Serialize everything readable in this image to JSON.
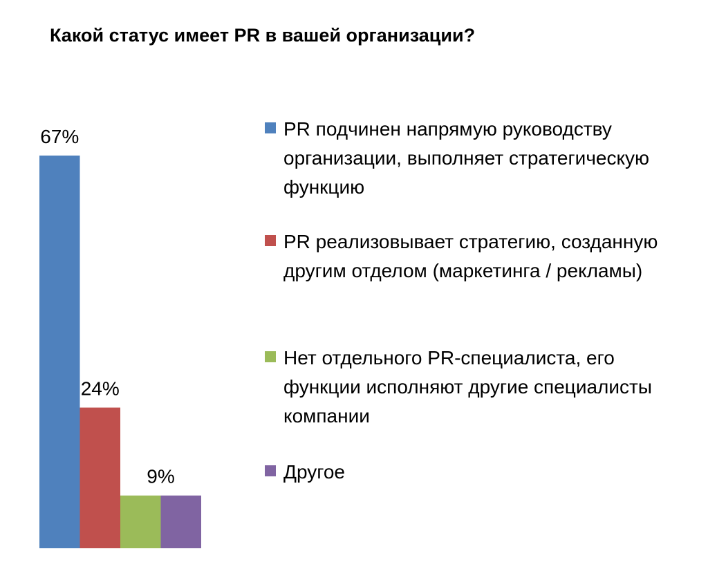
{
  "chart_data": {
    "type": "bar",
    "title": "Какой статус имеет PR в вашей организации?",
    "categories": [
      "PR подчинен напрямую руководству организации, выполняет стратегическую функцию",
      "PR реализовывает стратегию, созданную другим отделом (маркетинга / рекламы)",
      "Нет отдельного PR-специалиста, его функции исполняют другие специалисты компании",
      "Другое"
    ],
    "values": [
      67,
      24,
      9,
      9
    ],
    "data_labels": [
      "67%",
      "24%",
      "9%",
      null
    ],
    "colors": [
      "#4f81bd",
      "#c0504d",
      "#9bbb59",
      "#8064a2"
    ],
    "xlabel": "",
    "ylabel": "",
    "ylim": [
      0,
      67
    ],
    "grid": false,
    "legend": "right"
  }
}
